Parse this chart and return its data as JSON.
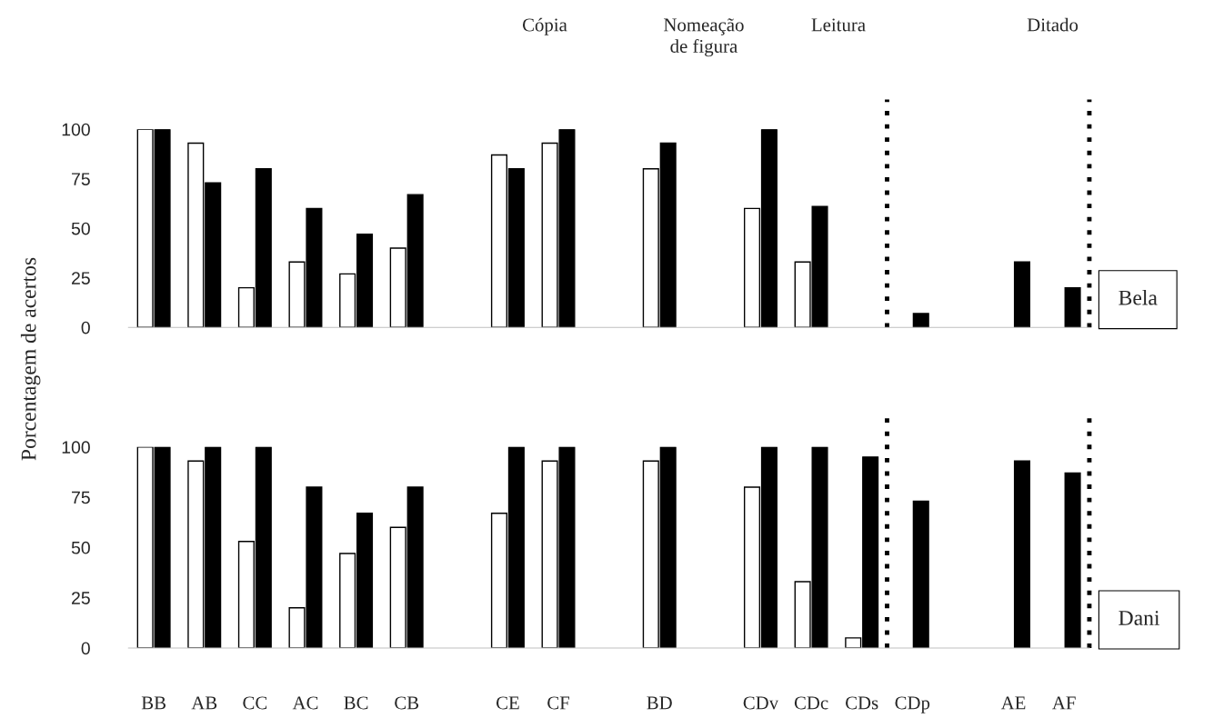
{
  "chart_data": [
    {
      "type": "bar",
      "ylabel": "Porcentagem de acertos",
      "categories": [
        null,
        null,
        null,
        null,
        null,
        null,
        null,
        null,
        null,
        null,
        null,
        null,
        null,
        null,
        null,
        null,
        null,
        null,
        null
      ],
      "series": [
        {
          "color": "#ffffff",
          "values": [
            100,
            93,
            20,
            33,
            27,
            40,
            null,
            87,
            93,
            null,
            80,
            null,
            60,
            33,
            0,
            0,
            null,
            0,
            0
          ]
        },
        {
          "color": "#000000",
          "values": [
            100,
            73,
            80,
            60,
            47,
            67,
            null,
            80,
            100,
            null,
            93,
            null,
            100,
            61,
            0,
            7,
            null,
            33,
            20
          ]
        }
      ],
      "ylim": [
        0,
        100
      ],
      "yticks": [
        0,
        25,
        50,
        75,
        100
      ],
      "tick_labels": "y",
      "grid": false,
      "legend": false,
      "annotations": [
        "Cópia",
        "Nomeação\nde figura",
        "Leitura",
        "Ditado",
        "Bela"
      ]
    },
    {
      "type": "bar",
      "categories": [
        "BB",
        "AB",
        "CC",
        "AC",
        "BC",
        "CB",
        null,
        "CE",
        "CF",
        null,
        "BD",
        null,
        "CDv",
        "CDc",
        "CDs",
        "CDp",
        null,
        "AE",
        "AF"
      ],
      "series": [
        {
          "color": "#ffffff",
          "values": [
            100,
            93,
            53,
            20,
            47,
            60,
            null,
            67,
            93,
            null,
            93,
            null,
            80,
            33,
            5,
            0,
            null,
            0,
            0
          ]
        },
        {
          "color": "#000000",
          "values": [
            100,
            100,
            100,
            80,
            67,
            80,
            null,
            100,
            100,
            null,
            100,
            null,
            100,
            100,
            95,
            73,
            null,
            93,
            87
          ]
        }
      ],
      "ylim": [
        0,
        100
      ],
      "yticks": [
        0,
        25,
        50,
        75,
        100
      ],
      "grid": false,
      "legend": false,
      "annotations": [
        "Dani"
      ]
    }
  ]
}
